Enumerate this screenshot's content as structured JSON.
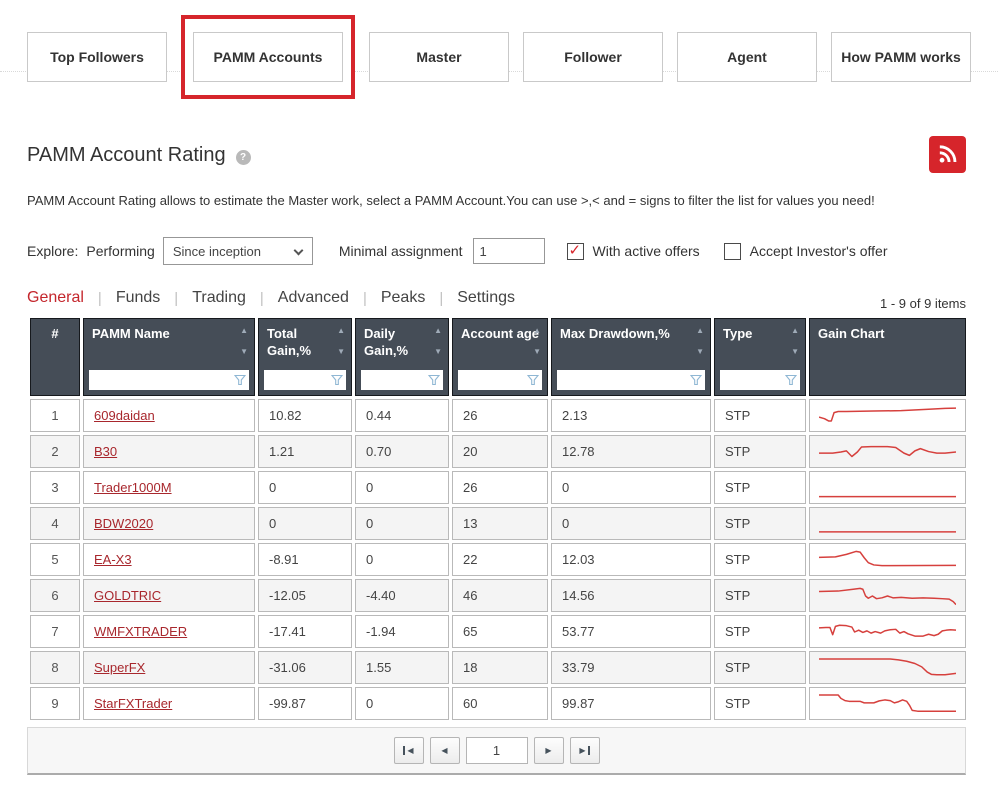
{
  "nav": {
    "buttons": [
      {
        "label": "Top Followers"
      },
      {
        "label": "PAMM Accounts",
        "active": true
      },
      {
        "label": "Master"
      },
      {
        "label": "Follower"
      },
      {
        "label": "Agent"
      },
      {
        "label": "How PAMM works"
      }
    ],
    "highlight_color": "#d6252b"
  },
  "header": {
    "title": "PAMM Account Rating",
    "help_icon": "?",
    "description": "PAMM Account Rating allows to estimate the Master work, select a PAMM Account.You can use >,< and = signs to filter the list for values you need!"
  },
  "filters": {
    "explore_label": "Explore:",
    "mode_label": "Performing",
    "period_select_value": "Since inception",
    "minimal_assignment_label": "Minimal assignment",
    "minimal_assignment_value": "1",
    "active_offers": {
      "label": "With active offers",
      "checked": true,
      "check_icon": "✓"
    },
    "accept_offer": {
      "label": "Accept Investor's offer",
      "checked": false,
      "check_icon": "✓"
    }
  },
  "tabs": {
    "separator": "|",
    "items": [
      {
        "label": "General",
        "active": true
      },
      {
        "label": "Funds"
      },
      {
        "label": "Trading"
      },
      {
        "label": "Advanced"
      },
      {
        "label": "Peaks"
      },
      {
        "label": "Settings"
      }
    ],
    "items_count": "1 - 9 of 9 items"
  },
  "table": {
    "icons": {
      "sort_asc": "▲",
      "sort_desc": "▼"
    },
    "columns": [
      {
        "label": "#"
      },
      {
        "label": "PAMM Name"
      },
      {
        "label": "Total Gain,%"
      },
      {
        "label": "Daily Gain,%"
      },
      {
        "label": "Account age"
      },
      {
        "label": "Max Drawdown,%"
      },
      {
        "label": "Type"
      },
      {
        "label": "Gain Chart"
      }
    ],
    "rows": [
      {
        "num": "1",
        "name": "609daidan",
        "total_gain": "10.82",
        "daily_gain": "0.44",
        "account_age": "26",
        "max_drawdown": "2.13",
        "type": "STP"
      },
      {
        "num": "2",
        "name": "B30",
        "total_gain": "1.21",
        "daily_gain": "0.70",
        "account_age": "20",
        "max_drawdown": "12.78",
        "type": "STP"
      },
      {
        "num": "3",
        "name": "Trader1000M",
        "total_gain": "0",
        "daily_gain": "0",
        "account_age": "26",
        "max_drawdown": "0",
        "type": "STP"
      },
      {
        "num": "4",
        "name": "BDW2020",
        "total_gain": "0",
        "daily_gain": "0",
        "account_age": "13",
        "max_drawdown": "0",
        "type": "STP"
      },
      {
        "num": "5",
        "name": "EA-X3",
        "total_gain": "-8.91",
        "daily_gain": "0",
        "account_age": "22",
        "max_drawdown": "12.03",
        "type": "STP"
      },
      {
        "num": "6",
        "name": "GOLDTRIC",
        "total_gain": "-12.05",
        "daily_gain": "-4.40",
        "account_age": "46",
        "max_drawdown": "14.56",
        "type": "STP"
      },
      {
        "num": "7",
        "name": "WMFXTRADER",
        "total_gain": "-17.41",
        "daily_gain": "-1.94",
        "account_age": "65",
        "max_drawdown": "53.77",
        "type": "STP"
      },
      {
        "num": "8",
        "name": "SuperFX",
        "total_gain": "-31.06",
        "daily_gain": "1.55",
        "account_age": "18",
        "max_drawdown": "33.79",
        "type": "STP"
      },
      {
        "num": "9",
        "name": "StarFXTrader",
        "total_gain": "-99.87",
        "daily_gain": "0",
        "account_age": "60",
        "max_drawdown": "99.87",
        "type": "STP"
      }
    ]
  },
  "chart_data": {
    "type": "line",
    "color": "#d6403d",
    "sparklines": [
      {
        "name": "609daidan",
        "points": [
          [
            0,
            0.55
          ],
          [
            4,
            0.62
          ],
          [
            7,
            0.72
          ],
          [
            9,
            0.72
          ],
          [
            11,
            0.35
          ],
          [
            14,
            0.3
          ],
          [
            20,
            0.3
          ],
          [
            40,
            0.28
          ],
          [
            60,
            0.26
          ],
          [
            80,
            0.2
          ],
          [
            92,
            0.16
          ],
          [
            100,
            0.15
          ]
        ]
      },
      {
        "name": "B30",
        "points": [
          [
            0,
            0.55
          ],
          [
            10,
            0.55
          ],
          [
            16,
            0.5
          ],
          [
            20,
            0.45
          ],
          [
            24,
            0.7
          ],
          [
            28,
            0.5
          ],
          [
            31,
            0.28
          ],
          [
            38,
            0.26
          ],
          [
            50,
            0.26
          ],
          [
            56,
            0.3
          ],
          [
            62,
            0.55
          ],
          [
            66,
            0.65
          ],
          [
            70,
            0.45
          ],
          [
            74,
            0.35
          ],
          [
            80,
            0.48
          ],
          [
            86,
            0.55
          ],
          [
            92,
            0.55
          ],
          [
            100,
            0.5
          ]
        ]
      },
      {
        "name": "Trader1000M",
        "points": [
          [
            0,
            0.88
          ],
          [
            100,
            0.88
          ]
        ]
      },
      {
        "name": "BDW2020",
        "points": [
          [
            0,
            0.85
          ],
          [
            100,
            0.85
          ]
        ]
      },
      {
        "name": "EA-X3",
        "points": [
          [
            0,
            0.38
          ],
          [
            12,
            0.36
          ],
          [
            20,
            0.25
          ],
          [
            27,
            0.12
          ],
          [
            30,
            0.15
          ],
          [
            33,
            0.4
          ],
          [
            36,
            0.62
          ],
          [
            40,
            0.72
          ],
          [
            46,
            0.75
          ],
          [
            100,
            0.74
          ]
        ]
      },
      {
        "name": "GOLDTRIC",
        "points": [
          [
            0,
            0.3
          ],
          [
            14,
            0.28
          ],
          [
            25,
            0.2
          ],
          [
            30,
            0.16
          ],
          [
            32,
            0.2
          ],
          [
            34,
            0.5
          ],
          [
            36,
            0.6
          ],
          [
            39,
            0.5
          ],
          [
            42,
            0.62
          ],
          [
            46,
            0.58
          ],
          [
            50,
            0.5
          ],
          [
            54,
            0.58
          ],
          [
            60,
            0.56
          ],
          [
            68,
            0.6
          ],
          [
            76,
            0.58
          ],
          [
            84,
            0.6
          ],
          [
            90,
            0.62
          ],
          [
            95,
            0.64
          ],
          [
            98,
            0.75
          ],
          [
            100,
            0.88
          ]
        ]
      },
      {
        "name": "WMFXTRADER",
        "points": [
          [
            0,
            0.32
          ],
          [
            5,
            0.3
          ],
          [
            8,
            0.3
          ],
          [
            10,
            0.62
          ],
          [
            12,
            0.25
          ],
          [
            15,
            0.2
          ],
          [
            20,
            0.22
          ],
          [
            24,
            0.28
          ],
          [
            26,
            0.5
          ],
          [
            29,
            0.42
          ],
          [
            32,
            0.52
          ],
          [
            35,
            0.45
          ],
          [
            38,
            0.55
          ],
          [
            41,
            0.48
          ],
          [
            45,
            0.55
          ],
          [
            48,
            0.45
          ],
          [
            52,
            0.4
          ],
          [
            56,
            0.38
          ],
          [
            59,
            0.55
          ],
          [
            62,
            0.48
          ],
          [
            65,
            0.58
          ],
          [
            70,
            0.68
          ],
          [
            76,
            0.68
          ],
          [
            80,
            0.6
          ],
          [
            84,
            0.66
          ],
          [
            87,
            0.6
          ],
          [
            90,
            0.45
          ],
          [
            93,
            0.42
          ],
          [
            96,
            0.4
          ],
          [
            100,
            0.42
          ]
        ]
      },
      {
        "name": "SuperFX",
        "points": [
          [
            0,
            0.1
          ],
          [
            52,
            0.1
          ],
          [
            58,
            0.14
          ],
          [
            64,
            0.2
          ],
          [
            70,
            0.3
          ],
          [
            75,
            0.45
          ],
          [
            79,
            0.68
          ],
          [
            82,
            0.78
          ],
          [
            86,
            0.8
          ],
          [
            92,
            0.8
          ],
          [
            100,
            0.74
          ]
        ]
      },
      {
        "name": "StarFXTrader",
        "points": [
          [
            0,
            0.1
          ],
          [
            14,
            0.1
          ],
          [
            16,
            0.25
          ],
          [
            19,
            0.35
          ],
          [
            22,
            0.38
          ],
          [
            30,
            0.38
          ],
          [
            33,
            0.45
          ],
          [
            40,
            0.45
          ],
          [
            44,
            0.36
          ],
          [
            48,
            0.32
          ],
          [
            52,
            0.35
          ],
          [
            55,
            0.45
          ],
          [
            58,
            0.4
          ],
          [
            61,
            0.32
          ],
          [
            64,
            0.38
          ],
          [
            66,
            0.55
          ],
          [
            68,
            0.78
          ],
          [
            72,
            0.82
          ],
          [
            100,
            0.82
          ]
        ]
      }
    ]
  },
  "pagination": {
    "page": "1",
    "icons": {
      "prev": "◀",
      "next": "▶"
    }
  }
}
